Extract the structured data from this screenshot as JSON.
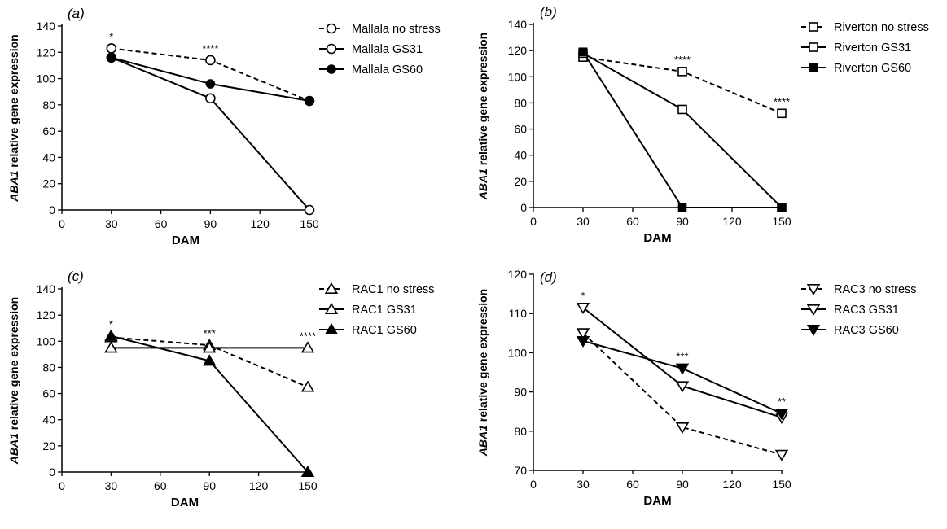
{
  "chart_data": [
    {
      "type": "line",
      "panel_label": "(a)",
      "ylabel_italic": "ABA1",
      "ylabel_rest": " relative gene expression",
      "xlabel": "DAM",
      "x": [
        30,
        90,
        150
      ],
      "xlim": [
        0,
        150
      ],
      "xticks": [
        0,
        30,
        60,
        90,
        120,
        150
      ],
      "ylim": [
        0,
        140
      ],
      "yticks": [
        0,
        20,
        40,
        60,
        80,
        100,
        120,
        140
      ],
      "series": [
        {
          "name": "Mallala no stress",
          "values": [
            123,
            114,
            83
          ],
          "marker": "circle-open",
          "dash": true
        },
        {
          "name": "Mallala GS31",
          "values": [
            116,
            85,
            0
          ],
          "marker": "circle-open",
          "dash": false
        },
        {
          "name": "Mallala GS60",
          "values": [
            116,
            96,
            83
          ],
          "marker": "circle-filled",
          "dash": false
        }
      ],
      "annotations": [
        {
          "x": 30,
          "text": "*"
        },
        {
          "x": 90,
          "text": "****"
        }
      ]
    },
    {
      "type": "line",
      "panel_label": "(b)",
      "ylabel_italic": "ABA1",
      "ylabel_rest": " relative gene expression",
      "xlabel": "DAM",
      "x": [
        30,
        90,
        150
      ],
      "xlim": [
        0,
        150
      ],
      "xticks": [
        0,
        30,
        60,
        90,
        120,
        150
      ],
      "ylim": [
        0,
        140
      ],
      "yticks": [
        0,
        20,
        40,
        60,
        80,
        100,
        120,
        140
      ],
      "series": [
        {
          "name": "Riverton no stress",
          "values": [
            115,
            104,
            72
          ],
          "marker": "square-open",
          "dash": true
        },
        {
          "name": "Riverton GS31",
          "values": [
            118,
            75,
            0
          ],
          "marker": "square-open",
          "dash": false
        },
        {
          "name": "Riverton GS60",
          "values": [
            119,
            0,
            0
          ],
          "marker": "square-filled",
          "dash": false
        }
      ],
      "annotations": [
        {
          "x": 90,
          "text": "****"
        },
        {
          "x": 150,
          "text": "****"
        }
      ]
    },
    {
      "type": "line",
      "panel_label": "(c)",
      "ylabel_italic": "ABA1",
      "ylabel_rest": " relative gene expression",
      "xlabel": "DAM",
      "x": [
        30,
        90,
        150
      ],
      "xlim": [
        0,
        150
      ],
      "xticks": [
        0,
        30,
        60,
        90,
        120,
        150
      ],
      "ylim": [
        0,
        140
      ],
      "yticks": [
        0,
        20,
        40,
        60,
        80,
        100,
        120,
        140
      ],
      "series": [
        {
          "name": "RAC1 no stress",
          "values": [
            103,
            97,
            65
          ],
          "marker": "triangle-up-open",
          "dash": true
        },
        {
          "name": "RAC1 GS31",
          "values": [
            95,
            95,
            95
          ],
          "marker": "triangle-up-open",
          "dash": false
        },
        {
          "name": "RAC1 GS60",
          "values": [
            104,
            85,
            0
          ],
          "marker": "triangle-up-filled",
          "dash": false
        }
      ],
      "annotations": [
        {
          "x": 30,
          "text": "*"
        },
        {
          "x": 90,
          "text": "***"
        },
        {
          "x": 150,
          "text": "****"
        }
      ]
    },
    {
      "type": "line",
      "panel_label": "(d)",
      "ylabel_italic": "ABA1",
      "ylabel_rest": " relative gene expression",
      "xlabel": "DAM",
      "x": [
        30,
        90,
        150
      ],
      "xlim": [
        0,
        150
      ],
      "xticks": [
        0,
        30,
        60,
        90,
        120,
        150
      ],
      "ylim": [
        70,
        120
      ],
      "yticks": [
        70,
        80,
        90,
        100,
        110,
        120
      ],
      "series": [
        {
          "name": "RAC3 no stress",
          "values": [
            105,
            81,
            74
          ],
          "marker": "triangle-down-open",
          "dash": true
        },
        {
          "name": "RAC3 GS31",
          "values": [
            111.5,
            91.5,
            83.5
          ],
          "marker": "triangle-down-open",
          "dash": false
        },
        {
          "name": "RAC3 GS60",
          "values": [
            103,
            96,
            84.5
          ],
          "marker": "triangle-down-filled",
          "dash": false
        }
      ],
      "annotations": [
        {
          "x": 30,
          "text": "*"
        },
        {
          "x": 90,
          "text": "***"
        },
        {
          "x": 150,
          "text": "**"
        }
      ]
    }
  ]
}
